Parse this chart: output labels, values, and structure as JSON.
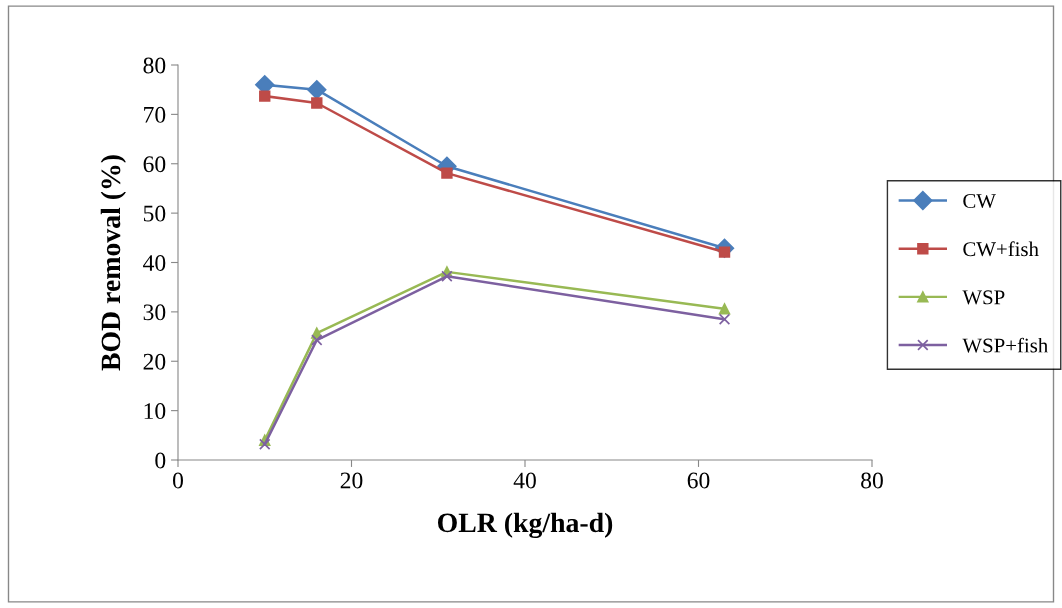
{
  "chart_data": {
    "type": "line",
    "xlabel": "OLR (kg/ha-d)",
    "ylabel": "BOD removal (%)",
    "x": [
      10,
      16,
      31,
      63
    ],
    "series": [
      {
        "name": "CW",
        "color": "#4a7ebb",
        "marker": "diamond",
        "values": [
          76,
          75,
          59.5,
          42.9
        ]
      },
      {
        "name": "CW+fish",
        "color": "#be4b48",
        "marker": "square",
        "values": [
          73.7,
          72.3,
          58.1,
          42.1
        ]
      },
      {
        "name": "WSP",
        "color": "#98b954",
        "marker": "triangle",
        "values": [
          4.0,
          25.7,
          38.1,
          30.6
        ]
      },
      {
        "name": "WSP+fish",
        "color": "#7d60a0",
        "marker": "cross",
        "values": [
          3.2,
          24.3,
          37.2,
          28.5
        ]
      }
    ],
    "xlim": [
      0,
      80
    ],
    "xticks": [
      0,
      20,
      40,
      60,
      80
    ],
    "ylim": [
      0,
      80
    ],
    "yticks": [
      0,
      10,
      20,
      30,
      40,
      50,
      60,
      70,
      80
    ],
    "grid": false,
    "legend": "right",
    "line_style": "solid"
  }
}
